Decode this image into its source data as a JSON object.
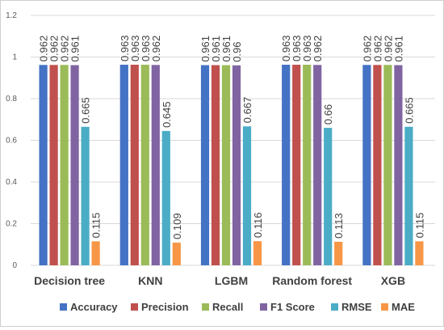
{
  "chart_data": {
    "type": "bar",
    "categories": [
      "Decision tree",
      "KNN",
      "LGBM",
      "Random forest",
      "XGB"
    ],
    "series": [
      {
        "name": "Accuracy",
        "color": "#4472C4",
        "values": [
          0.962,
          0.963,
          0.961,
          0.963,
          0.962
        ],
        "labels": [
          "0.962",
          "0.963",
          "0.961",
          "0.963",
          "0.962"
        ]
      },
      {
        "name": "Precision",
        "color": "#C0504D",
        "values": [
          0.962,
          0.963,
          0.961,
          0.963,
          0.962
        ],
        "labels": [
          "0.962",
          "0.963",
          "0.961",
          "0.963",
          "0.962"
        ]
      },
      {
        "name": "Recall",
        "color": "#9BBB59",
        "values": [
          0.962,
          0.963,
          0.961,
          0.963,
          0.962
        ],
        "labels": [
          "0.962",
          "0.963",
          "0.961",
          "0.963",
          "0.962"
        ]
      },
      {
        "name": "F1 Score",
        "color": "#8064A2",
        "values": [
          0.961,
          0.962,
          0.96,
          0.962,
          0.961
        ],
        "labels": [
          "0.961",
          "0.962",
          "0.96",
          "0.962",
          "0.961"
        ]
      },
      {
        "name": "RMSE",
        "color": "#4BACC6",
        "values": [
          0.665,
          0.645,
          0.667,
          0.66,
          0.665
        ],
        "labels": [
          "0.665",
          "0.645",
          "0.667",
          "0.66",
          "0.665"
        ]
      },
      {
        "name": "MAE",
        "color": "#F79646",
        "values": [
          0.115,
          0.109,
          0.116,
          0.113,
          0.115
        ],
        "labels": [
          "0.115",
          "0.109",
          "0.116",
          "0.113",
          "0.115"
        ]
      }
    ],
    "yticks": [
      "0",
      "0.2",
      "0.4",
      "0.6",
      "0.8",
      "1",
      "1.2"
    ],
    "ylim": [
      0,
      1.2
    ],
    "grid": true,
    "legend_position": "bottom",
    "title": "",
    "xlabel": "",
    "ylabel": ""
  }
}
